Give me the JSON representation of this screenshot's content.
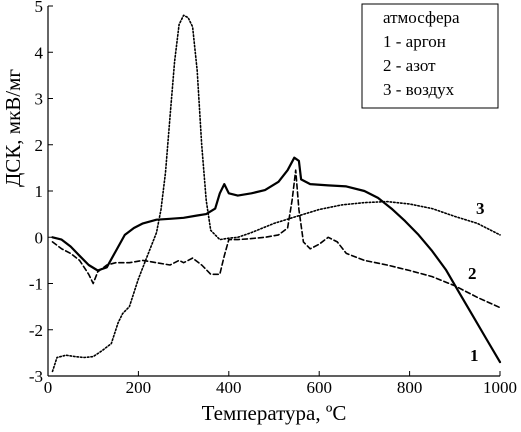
{
  "chart_data": {
    "type": "line",
    "title": "",
    "xlabel": "Температура, ºС",
    "ylabel": "ДСК, мкВ/мг",
    "xlim": [
      0,
      1000
    ],
    "ylim": [
      -3,
      5
    ],
    "x_ticks": [
      "0",
      "200",
      "400",
      "600",
      "800",
      "1000"
    ],
    "y_ticks": [
      "-3",
      "-2",
      "-1",
      "0",
      "1",
      "2",
      "3",
      "4",
      "5"
    ],
    "x_tick_values": [
      0,
      200,
      400,
      600,
      800,
      1000
    ],
    "y_tick_values": [
      -3,
      -2,
      -1,
      0,
      1,
      2,
      3,
      4,
      5
    ],
    "grid": false,
    "legend": {
      "placement": "top-right",
      "title": "атмосфера",
      "entries": [
        "1 - аргон",
        "2 - азот",
        "3 - воздух"
      ]
    },
    "series": [
      {
        "label": "1",
        "style": "solid",
        "x": [
          10,
          30,
          50,
          70,
          90,
          110,
          130,
          150,
          170,
          190,
          210,
          240,
          270,
          300,
          330,
          350,
          370,
          380,
          390,
          400,
          420,
          450,
          480,
          510,
          530,
          545,
          555,
          560,
          580,
          620,
          660,
          700,
          730,
          760,
          790,
          820,
          850,
          880,
          910,
          940,
          970,
          1000
        ],
        "y": [
          0.0,
          -0.05,
          -0.2,
          -0.4,
          -0.6,
          -0.72,
          -0.65,
          -0.3,
          0.05,
          0.2,
          0.3,
          0.38,
          0.4,
          0.42,
          0.47,
          0.5,
          0.62,
          0.95,
          1.15,
          0.95,
          0.9,
          0.95,
          1.02,
          1.2,
          1.45,
          1.72,
          1.65,
          1.25,
          1.15,
          1.12,
          1.1,
          1.0,
          0.85,
          0.62,
          0.35,
          0.05,
          -0.3,
          -0.7,
          -1.2,
          -1.7,
          -2.2,
          -2.7
        ]
      },
      {
        "label": "2",
        "style": "dashed",
        "x": [
          10,
          30,
          50,
          70,
          90,
          100,
          110,
          130,
          150,
          180,
          210,
          240,
          270,
          290,
          300,
          320,
          340,
          350,
          360,
          380,
          390,
          400,
          420,
          450,
          480,
          510,
          530,
          540,
          548,
          555,
          565,
          580,
          600,
          620,
          640,
          660,
          700,
          750,
          800,
          850,
          900,
          950,
          1000
        ],
        "y": [
          -0.1,
          -0.25,
          -0.35,
          -0.5,
          -0.8,
          -1.0,
          -0.75,
          -0.6,
          -0.55,
          -0.55,
          -0.5,
          -0.55,
          -0.6,
          -0.5,
          -0.55,
          -0.45,
          -0.6,
          -0.7,
          -0.8,
          -0.8,
          -0.4,
          -0.05,
          -0.05,
          -0.03,
          0.0,
          0.05,
          0.2,
          0.8,
          1.45,
          0.6,
          -0.1,
          -0.25,
          -0.15,
          0.0,
          -0.1,
          -0.35,
          -0.5,
          -0.6,
          -0.72,
          -0.85,
          -1.05,
          -1.3,
          -1.52
        ]
      },
      {
        "label": "3",
        "style": "dotted",
        "x": [
          10,
          20,
          40,
          60,
          80,
          100,
          120,
          140,
          155,
          165,
          180,
          200,
          220,
          240,
          250,
          260,
          270,
          280,
          290,
          300,
          310,
          320,
          330,
          340,
          350,
          360,
          380,
          400,
          420,
          450,
          500,
          550,
          600,
          650,
          700,
          750,
          800,
          850,
          900,
          950,
          1000
        ],
        "y": [
          -2.9,
          -2.6,
          -2.55,
          -2.58,
          -2.6,
          -2.58,
          -2.45,
          -2.3,
          -1.85,
          -1.65,
          -1.5,
          -0.9,
          -0.4,
          0.1,
          0.6,
          1.4,
          2.6,
          3.8,
          4.6,
          4.8,
          4.75,
          4.55,
          3.6,
          2.0,
          0.8,
          0.15,
          -0.05,
          -0.02,
          0.0,
          0.1,
          0.3,
          0.45,
          0.6,
          0.7,
          0.75,
          0.77,
          0.72,
          0.62,
          0.45,
          0.3,
          0.05
        ]
      }
    ]
  }
}
